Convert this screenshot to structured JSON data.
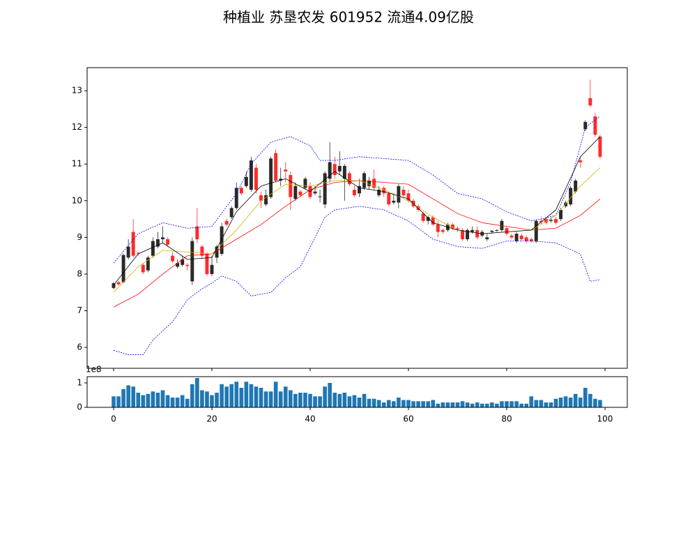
{
  "chart_data": [
    {
      "type": "candlestick",
      "title": "种植业 苏垦农发 601952 流通4.09亿股",
      "up_color": "#2a2a2a",
      "down_color": "#ff2a2a",
      "x": [
        0,
        1,
        2,
        3,
        4,
        5,
        6,
        7,
        8,
        9,
        10,
        11,
        12,
        13,
        14,
        15,
        16,
        17,
        18,
        19,
        20,
        21,
        22,
        23,
        24,
        25,
        26,
        27,
        28,
        29,
        30,
        31,
        32,
        33,
        34,
        35,
        36,
        37,
        38,
        39,
        40,
        41,
        42,
        43,
        44,
        45,
        46,
        47,
        48,
        49,
        50,
        51,
        52,
        53,
        54,
        55,
        56,
        57,
        58,
        59,
        60,
        61,
        62,
        63,
        64,
        65,
        66,
        67,
        68,
        69,
        70,
        71,
        72,
        73,
        74,
        75,
        76,
        77,
        78,
        79,
        80,
        81,
        82,
        83,
        84,
        85,
        86,
        87,
        88,
        89,
        90,
        91,
        92,
        93,
        94,
        95,
        96,
        97,
        98,
        99
      ],
      "open": [
        7.62,
        7.78,
        7.78,
        8.45,
        9.15,
        8.58,
        8.25,
        8.1,
        8.5,
        8.75,
        8.95,
        8.95,
        8.5,
        8.2,
        8.25,
        8.25,
        7.8,
        9.3,
        8.75,
        8.55,
        8.0,
        8.45,
        8.55,
        9.45,
        9.55,
        9.8,
        10.35,
        10.4,
        10.3,
        10.9,
        10.15,
        9.9,
        10.1,
        11.3,
        10.55,
        10.85,
        10.7,
        10.05,
        10.25,
        10.35,
        10.4,
        10.2,
        10.1,
        9.9,
        10.6,
        11.0,
        10.8,
        10.6,
        10.75,
        10.3,
        10.2,
        10.35,
        10.4,
        10.6,
        10.15,
        10.35,
        10.2,
        9.95,
        9.95,
        10.3,
        10.2,
        10.0,
        9.85,
        9.65,
        9.45,
        9.55,
        9.35,
        9.2,
        9.2,
        9.35,
        9.25,
        9.2,
        8.95,
        9.15,
        9.2,
        9.05,
        8.95,
        9.15,
        9.18,
        9.2,
        9.25,
        9.05,
        8.9,
        9.05,
        9.0,
        8.95,
        8.9,
        9.45,
        9.5,
        9.45,
        9.5,
        9.5,
        9.85,
        9.9,
        10.25,
        11.1,
        11.95,
        12.8,
        12.3,
        11.75
      ],
      "high": [
        7.78,
        7.82,
        8.55,
        8.95,
        9.5,
        8.6,
        8.3,
        8.5,
        9.0,
        9.15,
        9.3,
        9.0,
        8.6,
        8.4,
        8.5,
        8.3,
        9.0,
        9.8,
        8.8,
        8.6,
        8.5,
        8.8,
        9.4,
        9.5,
        9.85,
        10.5,
        10.4,
        10.8,
        11.2,
        11.0,
        10.25,
        10.3,
        11.2,
        11.4,
        10.9,
        11.05,
        10.8,
        10.5,
        10.3,
        10.65,
        10.5,
        10.4,
        10.3,
        10.8,
        11.6,
        11.2,
        11.35,
        11.0,
        10.8,
        10.4,
        10.6,
        10.8,
        10.65,
        10.85,
        10.4,
        10.4,
        10.25,
        10.2,
        10.45,
        10.4,
        10.3,
        10.05,
        9.9,
        9.7,
        9.6,
        9.6,
        9.45,
        9.25,
        9.4,
        9.4,
        9.3,
        9.25,
        9.25,
        9.3,
        9.3,
        9.2,
        9.1,
        9.2,
        9.22,
        9.5,
        9.3,
        9.1,
        9.15,
        9.1,
        9.05,
        9.0,
        9.5,
        9.55,
        9.55,
        9.55,
        9.55,
        9.8,
        10.0,
        10.4,
        10.6,
        11.2,
        12.2,
        13.3,
        12.4,
        11.8
      ],
      "low": [
        7.58,
        7.68,
        7.75,
        8.4,
        8.45,
        8.5,
        8.0,
        8.05,
        8.45,
        8.7,
        8.85,
        8.75,
        8.3,
        8.15,
        8.2,
        8.1,
        7.7,
        8.85,
        8.4,
        7.95,
        7.95,
        8.3,
        8.5,
        9.3,
        9.5,
        9.75,
        10.15,
        10.35,
        10.25,
        10.2,
        9.8,
        9.85,
        10.05,
        10.5,
        10.4,
        10.5,
        9.75,
        10.0,
        10.1,
        10.3,
        10.05,
        10.15,
        9.95,
        9.8,
        10.5,
        10.6,
        10.7,
        10.0,
        10.4,
        10.1,
        10.1,
        10.3,
        10.3,
        10.3,
        10.1,
        10.1,
        9.85,
        9.9,
        9.8,
        10.1,
        9.95,
        9.8,
        9.7,
        9.4,
        9.35,
        9.3,
        9.0,
        9.1,
        9.15,
        9.2,
        9.15,
        8.9,
        8.9,
        9.1,
        8.95,
        9.0,
        8.9,
        9.1,
        9.15,
        9.15,
        9.05,
        8.95,
        8.85,
        8.9,
        8.85,
        8.85,
        8.85,
        9.35,
        9.35,
        9.4,
        9.35,
        9.45,
        9.8,
        9.85,
        10.2,
        10.9,
        11.9,
        12.55,
        11.75,
        11.15
      ],
      "close": [
        7.75,
        7.72,
        8.52,
        8.75,
        8.5,
        8.56,
        8.05,
        8.45,
        8.9,
        8.95,
        9.0,
        8.8,
        8.35,
        8.3,
        8.4,
        8.22,
        8.9,
        8.95,
        8.5,
        8.0,
        8.25,
        8.75,
        9.3,
        9.35,
        9.8,
        10.35,
        10.2,
        10.65,
        11.1,
        10.3,
        10.0,
        10.15,
        11.15,
        10.55,
        10.6,
        10.8,
        10.1,
        10.4,
        10.15,
        10.6,
        10.1,
        10.25,
        10.12,
        10.75,
        11.05,
        10.7,
        10.95,
        10.95,
        10.45,
        10.15,
        10.4,
        10.75,
        10.55,
        10.35,
        10.3,
        10.2,
        9.9,
        10.0,
        10.4,
        10.15,
        10.0,
        9.85,
        9.75,
        9.45,
        9.55,
        9.35,
        9.15,
        9.15,
        9.35,
        9.25,
        9.22,
        8.95,
        9.2,
        9.2,
        9.0,
        9.15,
        9.0,
        9.18,
        9.2,
        9.45,
        9.1,
        9.0,
        9.1,
        8.95,
        8.9,
        8.9,
        9.45,
        9.42,
        9.4,
        9.48,
        9.4,
        9.75,
        9.95,
        10.35,
        10.55,
        11.05,
        12.15,
        12.6,
        11.8,
        11.2
      ],
      "lines": [
        {
          "color": "#0000ff",
          "style": "dashed",
          "x": [
            0,
            5,
            10,
            15,
            20,
            25,
            28,
            32,
            36,
            40,
            42,
            45,
            50,
            55,
            60,
            65,
            70,
            75,
            80,
            85,
            87,
            90,
            93,
            96,
            99
          ],
          "values": [
            8.3,
            9.1,
            9.4,
            9.25,
            9.3,
            10.2,
            11.0,
            11.6,
            11.75,
            11.5,
            11.1,
            11.1,
            11.2,
            11.15,
            11.1,
            10.7,
            10.2,
            10.05,
            9.7,
            9.45,
            9.5,
            9.6,
            10.5,
            12.0,
            12.3
          ]
        },
        {
          "color": "#0000ff",
          "style": "dashed",
          "x": [
            0,
            3,
            6,
            8,
            12,
            15,
            18,
            20,
            22,
            25,
            28,
            32,
            35,
            38,
            41,
            43,
            45,
            50,
            55,
            60,
            65,
            70,
            75,
            80,
            85,
            90,
            95,
            97,
            99
          ],
          "values": [
            5.92,
            5.8,
            5.8,
            6.2,
            6.7,
            7.3,
            7.6,
            7.75,
            7.95,
            7.8,
            7.4,
            7.5,
            7.9,
            8.2,
            9.0,
            9.55,
            9.75,
            9.85,
            9.75,
            9.45,
            8.95,
            8.75,
            8.7,
            8.9,
            8.9,
            8.85,
            8.55,
            7.8,
            7.85
          ]
        },
        {
          "color": "#ff0000",
          "style": "solid",
          "x": [
            0,
            5,
            10,
            15,
            20,
            25,
            30,
            35,
            40,
            45,
            50,
            55,
            60,
            65,
            70,
            75,
            80,
            85,
            90,
            95,
            99
          ],
          "values": [
            7.1,
            7.45,
            8.0,
            8.5,
            8.55,
            8.95,
            9.35,
            9.85,
            10.3,
            10.5,
            10.55,
            10.5,
            10.45,
            10.05,
            9.65,
            9.4,
            9.3,
            9.2,
            9.25,
            9.6,
            10.05
          ]
        },
        {
          "color": "#c8b400",
          "style": "solid",
          "x": [
            0,
            5,
            10,
            15,
            20,
            25,
            30,
            35,
            40,
            45,
            50,
            55,
            60,
            65,
            70,
            75,
            80,
            85,
            90,
            95,
            99
          ],
          "values": [
            7.5,
            8.2,
            8.65,
            8.6,
            8.55,
            9.2,
            10.0,
            10.45,
            10.4,
            10.55,
            10.55,
            10.3,
            10.0,
            9.55,
            9.2,
            9.1,
            9.15,
            9.2,
            9.6,
            10.4,
            10.9
          ]
        },
        {
          "color": "#000000",
          "style": "solid",
          "x": [
            0,
            5,
            10,
            15,
            20,
            25,
            30,
            35,
            40,
            45,
            50,
            55,
            60,
            65,
            70,
            75,
            80,
            85,
            90,
            95,
            99
          ],
          "values": [
            7.7,
            8.55,
            8.85,
            8.4,
            8.45,
            9.7,
            10.4,
            10.6,
            10.25,
            10.8,
            10.35,
            10.25,
            10.05,
            9.4,
            9.2,
            9.1,
            9.15,
            9.2,
            9.75,
            11.2,
            11.75
          ]
        }
      ],
      "xlim": [
        -5.39,
        104.54
      ],
      "xticks": [
        0,
        20,
        40,
        60,
        80,
        100
      ],
      "ylim": [
        5.43,
        13.63
      ],
      "yticks": [
        6,
        7,
        8,
        9,
        10,
        11,
        12,
        13
      ]
    },
    {
      "type": "bar",
      "color": "#1f77b4",
      "offset_text": "1e8",
      "x": [
        0,
        1,
        2,
        3,
        4,
        5,
        6,
        7,
        8,
        9,
        10,
        11,
        12,
        13,
        14,
        15,
        16,
        17,
        18,
        19,
        20,
        21,
        22,
        23,
        24,
        25,
        26,
        27,
        28,
        29,
        30,
        31,
        32,
        33,
        34,
        35,
        36,
        37,
        38,
        39,
        40,
        41,
        42,
        43,
        44,
        45,
        46,
        47,
        48,
        49,
        50,
        51,
        52,
        53,
        54,
        55,
        56,
        57,
        58,
        59,
        60,
        61,
        62,
        63,
        64,
        65,
        66,
        67,
        68,
        69,
        70,
        71,
        72,
        73,
        74,
        75,
        76,
        77,
        78,
        79,
        80,
        81,
        82,
        83,
        84,
        85,
        86,
        87,
        88,
        89,
        90,
        91,
        92,
        93,
        94,
        95,
        96,
        97,
        98,
        99
      ],
      "values": [
        45000000,
        45000000,
        75000000,
        90000000,
        85000000,
        60000000,
        50000000,
        55000000,
        65000000,
        60000000,
        70000000,
        50000000,
        40000000,
        40000000,
        50000000,
        35000000,
        95000000,
        120000000,
        70000000,
        65000000,
        50000000,
        60000000,
        95000000,
        85000000,
        95000000,
        105000000,
        80000000,
        105000000,
        95000000,
        85000000,
        80000000,
        65000000,
        65000000,
        105000000,
        65000000,
        85000000,
        70000000,
        55000000,
        60000000,
        60000000,
        55000000,
        45000000,
        45000000,
        85000000,
        100000000,
        60000000,
        55000000,
        60000000,
        45000000,
        50000000,
        40000000,
        55000000,
        35000000,
        35000000,
        30000000,
        20000000,
        30000000,
        25000000,
        40000000,
        30000000,
        30000000,
        25000000,
        25000000,
        25000000,
        25000000,
        30000000,
        15000000,
        20000000,
        20000000,
        20000000,
        20000000,
        25000000,
        20000000,
        15000000,
        20000000,
        15000000,
        15000000,
        20000000,
        15000000,
        25000000,
        25000000,
        25000000,
        25000000,
        15000000,
        15000000,
        45000000,
        30000000,
        30000000,
        20000000,
        20000000,
        35000000,
        40000000,
        45000000,
        40000000,
        55000000,
        40000000,
        80000000,
        55000000,
        35000000,
        30000000
      ],
      "xlim": [
        -5.39,
        104.54
      ],
      "xticks": [
        0,
        20,
        40,
        60,
        80,
        100
      ],
      "ylim": [
        0,
        125700000
      ],
      "yticks": [
        0,
        {
          "value": 100000000,
          "label": "1"
        }
      ]
    }
  ]
}
